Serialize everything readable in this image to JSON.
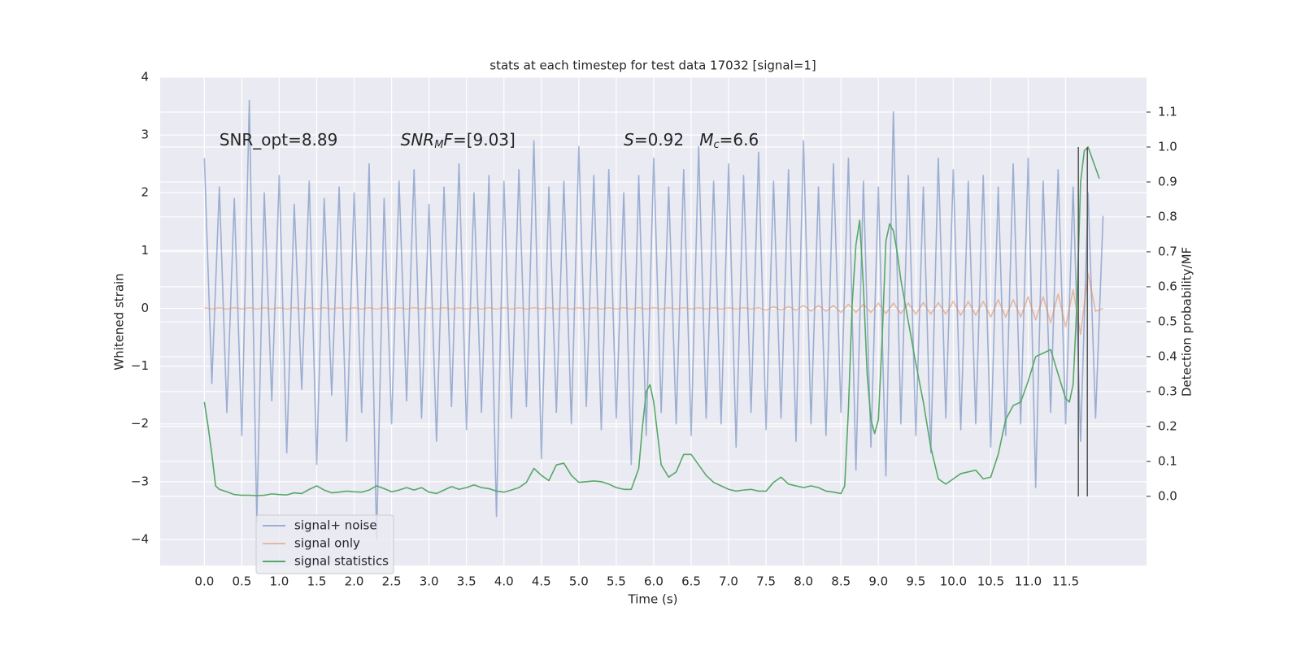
{
  "chart_data": {
    "type": "line",
    "title": "stats at each timestep for test data 17032 [signal=1]",
    "xlabel": "Time (s)",
    "ylabel": "Whitened strain",
    "y2label": "Detection probability/MF",
    "xlim": [
      -0.59,
      12.58
    ],
    "ylim": [
      -4.45,
      4
    ],
    "y2lim": [
      -0.198,
      1.2
    ],
    "xticks": [
      {
        "value": 0,
        "label": "0.0"
      },
      0.5,
      {
        "value": 1,
        "label": "1.0"
      },
      1.5,
      {
        "value": 2,
        "label": "2.0"
      },
      2.5,
      {
        "value": 3,
        "label": "3.0"
      },
      3.5,
      {
        "value": 4,
        "label": "4.0"
      },
      4.5,
      {
        "value": 5,
        "label": "5.0"
      },
      5.5,
      {
        "value": 6,
        "label": "6.0"
      },
      6.5,
      {
        "value": 7,
        "label": "7.0"
      },
      7.5,
      {
        "value": 8,
        "label": "8.0"
      },
      8.5,
      {
        "value": 9,
        "label": "9.0"
      },
      9.5,
      {
        "value": 10,
        "label": "10.0"
      },
      10.5,
      {
        "value": 11,
        "label": "11.0"
      },
      11.5
    ],
    "yticks": [
      {
        "value": -4,
        "label": "−4"
      },
      {
        "value": -3,
        "label": "−3"
      },
      {
        "value": -2,
        "label": "−2"
      },
      {
        "value": -1,
        "label": "−1"
      },
      0,
      1,
      2,
      3,
      4
    ],
    "y2ticks": [
      {
        "value": 0,
        "label": "0.0"
      },
      0.1,
      0.2,
      0.3,
      0.4,
      0.5,
      0.6,
      0.7,
      0.8,
      0.9,
      {
        "value": 1,
        "label": "1.0"
      },
      1.1
    ],
    "grid": true,
    "legend": "lower left",
    "x": [
      0,
      0.1,
      0.2,
      0.3,
      0.4,
      0.5,
      0.6,
      0.7,
      0.8,
      0.9,
      1,
      1.1,
      1.2,
      1.3,
      1.4,
      1.5,
      1.6,
      1.7,
      1.8,
      1.9,
      2,
      2.1,
      2.2,
      2.3,
      2.4,
      2.5,
      2.6,
      2.7,
      2.8,
      2.9,
      3,
      3.1,
      3.2,
      3.3,
      3.4,
      3.5,
      3.6,
      3.7,
      3.8,
      3.9,
      4,
      4.1,
      4.2,
      4.3,
      4.4,
      4.5,
      4.6,
      4.7,
      4.8,
      4.9,
      5,
      5.1,
      5.2,
      5.3,
      5.4,
      5.5,
      5.6,
      5.7,
      5.8,
      5.9,
      6,
      6.1,
      6.2,
      6.3,
      6.4,
      6.5,
      6.6,
      6.7,
      6.8,
      6.9,
      7,
      7.1,
      7.2,
      7.3,
      7.4,
      7.5,
      7.6,
      7.7,
      7.8,
      7.9,
      8,
      8.1,
      8.2,
      8.3,
      8.4,
      8.5,
      8.6,
      8.7,
      8.8,
      8.9,
      9,
      9.1,
      9.2,
      9.3,
      9.4,
      9.5,
      9.6,
      9.7,
      9.8,
      9.9,
      10,
      10.1,
      10.2,
      10.3,
      10.4,
      10.5,
      10.6,
      10.7,
      10.8,
      10.9,
      11,
      11.1,
      11.2,
      11.3,
      11.4,
      11.5,
      11.6,
      11.7,
      11.8,
      11.9,
      12
    ],
    "series": [
      {
        "name": "signal+ noise",
        "color": "#4c72b0",
        "alpha": 0.5,
        "values": [
          2.6,
          -1.3,
          2.1,
          -1.8,
          1.9,
          -2.2,
          3.6,
          -3.7,
          2.0,
          -1.6,
          2.3,
          -2.5,
          1.8,
          -1.4,
          2.2,
          -2.7,
          1.9,
          -1.5,
          2.1,
          -2.3,
          2.0,
          -1.8,
          2.5,
          -4.0,
          1.9,
          -2.0,
          2.2,
          -1.6,
          2.4,
          -1.9,
          1.8,
          -2.3,
          2.1,
          -1.7,
          2.5,
          -2.1,
          2.0,
          -1.8,
          2.3,
          -3.6,
          2.2,
          -1.9,
          2.4,
          -1.7,
          2.9,
          -2.6,
          2.1,
          -1.8,
          2.2,
          -2.0,
          2.8,
          -1.7,
          2.3,
          -2.1,
          2.4,
          -1.9,
          2.0,
          -2.7,
          2.3,
          -2.2,
          2.6,
          -1.8,
          2.1,
          -2.0,
          2.4,
          -2.2,
          2.8,
          -1.9,
          2.2,
          -2.0,
          2.5,
          -2.4,
          2.3,
          -1.8,
          2.7,
          -2.1,
          2.2,
          -1.9,
          2.4,
          -2.3,
          2.9,
          -2.0,
          2.1,
          -2.2,
          2.5,
          -1.8,
          2.6,
          -2.8,
          2.2,
          -2.4,
          2.1,
          -2.9,
          3.4,
          -2.0,
          2.3,
          -2.2,
          2.1,
          -2.5,
          2.6,
          -1.9,
          2.4,
          -2.1,
          2.2,
          -2.0,
          2.3,
          -2.4,
          2.1,
          -2.2,
          2.5,
          -2.0,
          2.6,
          -3.1,
          2.2,
          -1.8,
          2.4,
          -2.0,
          2.1,
          -2.3,
          2.0,
          -1.9,
          1.6
        ]
      },
      {
        "name": "signal only",
        "color": "#dd8452",
        "alpha": 0.5,
        "values": [
          0.01,
          -0.01,
          0.01,
          -0.01,
          0.01,
          -0.01,
          0.01,
          -0.01,
          0.01,
          -0.01,
          0.01,
          -0.01,
          0.01,
          -0.01,
          0.01,
          -0.01,
          0.01,
          -0.01,
          0.01,
          -0.01,
          0.01,
          -0.01,
          0.01,
          -0.01,
          0.01,
          -0.01,
          0.01,
          -0.01,
          0.01,
          -0.01,
          0.01,
          -0.01,
          0.01,
          -0.01,
          0.01,
          -0.01,
          0.01,
          -0.01,
          0.01,
          -0.01,
          0.01,
          -0.01,
          0.01,
          -0.01,
          0.01,
          -0.01,
          0.01,
          -0.01,
          0.01,
          -0.01,
          0.01,
          -0.01,
          0.01,
          -0.01,
          0.01,
          -0.01,
          0.01,
          -0.01,
          0.01,
          -0.01,
          0.01,
          -0.01,
          0.01,
          -0.01,
          0.01,
          -0.01,
          0.01,
          -0.01,
          0.01,
          -0.01,
          0.01,
          -0.01,
          0.01,
          -0.01,
          0.01,
          -0.03,
          0.03,
          -0.03,
          0.03,
          -0.03,
          0.05,
          -0.05,
          0.05,
          -0.05,
          0.05,
          -0.07,
          0.07,
          -0.07,
          0.07,
          -0.07,
          0.09,
          -0.09,
          0.09,
          -0.09,
          0.09,
          -0.1,
          0.1,
          -0.1,
          0.1,
          -0.1,
          0.12,
          -0.12,
          0.12,
          -0.12,
          0.12,
          -0.15,
          0.15,
          -0.15,
          0.15,
          -0.15,
          0.2,
          -0.2,
          0.2,
          -0.25,
          0.25,
          -0.32,
          0.32,
          -0.45,
          0.6,
          -0.05,
          0
        ]
      },
      {
        "name": "signal statistics",
        "color": "#55a868",
        "axis": "y2",
        "x": [
          0,
          0.05,
          0.1,
          0.15,
          0.2,
          0.3,
          0.4,
          0.5,
          0.6,
          0.7,
          0.8,
          0.9,
          1,
          1.1,
          1.2,
          1.3,
          1.4,
          1.5,
          1.6,
          1.7,
          1.8,
          1.9,
          2,
          2.1,
          2.2,
          2.3,
          2.4,
          2.5,
          2.6,
          2.7,
          2.8,
          2.9,
          3,
          3.1,
          3.2,
          3.3,
          3.4,
          3.5,
          3.6,
          3.7,
          3.8,
          3.9,
          4,
          4.1,
          4.2,
          4.3,
          4.4,
          4.5,
          4.6,
          4.7,
          4.8,
          4.9,
          5,
          5.1,
          5.2,
          5.3,
          5.4,
          5.5,
          5.6,
          5.7,
          5.8,
          5.85,
          5.9,
          5.95,
          6,
          6.1,
          6.2,
          6.3,
          6.4,
          6.5,
          6.6,
          6.7,
          6.8,
          6.9,
          7,
          7.1,
          7.2,
          7.3,
          7.4,
          7.5,
          7.6,
          7.7,
          7.8,
          7.9,
          8,
          8.1,
          8.2,
          8.3,
          8.4,
          8.5,
          8.55,
          8.6,
          8.65,
          8.7,
          8.75,
          8.8,
          8.85,
          8.9,
          8.95,
          9,
          9.05,
          9.1,
          9.15,
          9.2,
          9.25,
          9.3,
          9.4,
          9.5,
          9.6,
          9.7,
          9.8,
          9.9,
          10,
          10.1,
          10.2,
          10.3,
          10.4,
          10.5,
          10.6,
          10.7,
          10.8,
          10.9,
          11,
          11.1,
          11.2,
          11.3,
          11.4,
          11.5,
          11.55,
          11.6,
          11.65,
          11.7,
          11.75,
          11.8,
          11.85,
          11.9,
          11.95
        ],
        "values": [
          0.27,
          0.2,
          0.12,
          0.03,
          0.02,
          0.013,
          0.005,
          0.003,
          0.003,
          0.002,
          0.003,
          0.007,
          0.005,
          0.004,
          0.01,
          0.008,
          0.02,
          0.03,
          0.018,
          0.01,
          0.012,
          0.015,
          0.013,
          0.012,
          0.018,
          0.03,
          0.022,
          0.013,
          0.018,
          0.025,
          0.018,
          0.025,
          0.012,
          0.008,
          0.018,
          0.028,
          0.02,
          0.025,
          0.033,
          0.025,
          0.022,
          0.015,
          0.012,
          0.018,
          0.025,
          0.04,
          0.08,
          0.06,
          0.045,
          0.09,
          0.095,
          0.06,
          0.04,
          0.042,
          0.044,
          0.042,
          0.035,
          0.025,
          0.02,
          0.02,
          0.08,
          0.2,
          0.3,
          0.32,
          0.27,
          0.09,
          0.055,
          0.07,
          0.12,
          0.12,
          0.09,
          0.06,
          0.04,
          0.03,
          0.02,
          0.015,
          0.018,
          0.02,
          0.015,
          0.015,
          0.04,
          0.055,
          0.035,
          0.03,
          0.025,
          0.03,
          0.025,
          0.015,
          0.012,
          0.008,
          0.03,
          0.25,
          0.55,
          0.72,
          0.79,
          0.6,
          0.35,
          0.22,
          0.18,
          0.22,
          0.45,
          0.73,
          0.78,
          0.76,
          0.7,
          0.62,
          0.5,
          0.38,
          0.27,
          0.14,
          0.05,
          0.035,
          0.05,
          0.065,
          0.07,
          0.075,
          0.05,
          0.055,
          0.12,
          0.22,
          0.26,
          0.27,
          0.33,
          0.4,
          0.41,
          0.42,
          0.35,
          0.28,
          0.27,
          0.32,
          0.55,
          0.9,
          0.99,
          1.0,
          0.97,
          0.94,
          0.91
        ]
      }
    ],
    "vlines": [
      {
        "x": 11.67,
        "ymin": 0,
        "ymax": 1.0,
        "axis": "y2",
        "color": "#555555"
      },
      {
        "x": 11.79,
        "ymin": 0,
        "ymax": 1.0,
        "axis": "y2",
        "color": "#555555"
      }
    ],
    "annotations": [
      {
        "x": 0.2,
        "y": 2.9,
        "parts": [
          {
            "text": "SNR_opt=8.89"
          }
        ]
      },
      {
        "x": 2.62,
        "y": 2.9,
        "parts": [
          {
            "text": "SNR",
            "italic": true
          },
          {
            "text": "M",
            "italic": true,
            "sub": true
          },
          {
            "text": "F",
            "italic": true
          },
          {
            "text": "=[9.03]"
          }
        ]
      },
      {
        "x": 5.6,
        "y": 2.9,
        "parts": [
          {
            "text": "S",
            "italic": true
          },
          {
            "text": "=0.92   "
          },
          {
            "text": "M",
            "italic": true
          },
          {
            "text": "c",
            "italic": true,
            "sub": true
          },
          {
            "text": "=6.6"
          }
        ]
      }
    ]
  }
}
